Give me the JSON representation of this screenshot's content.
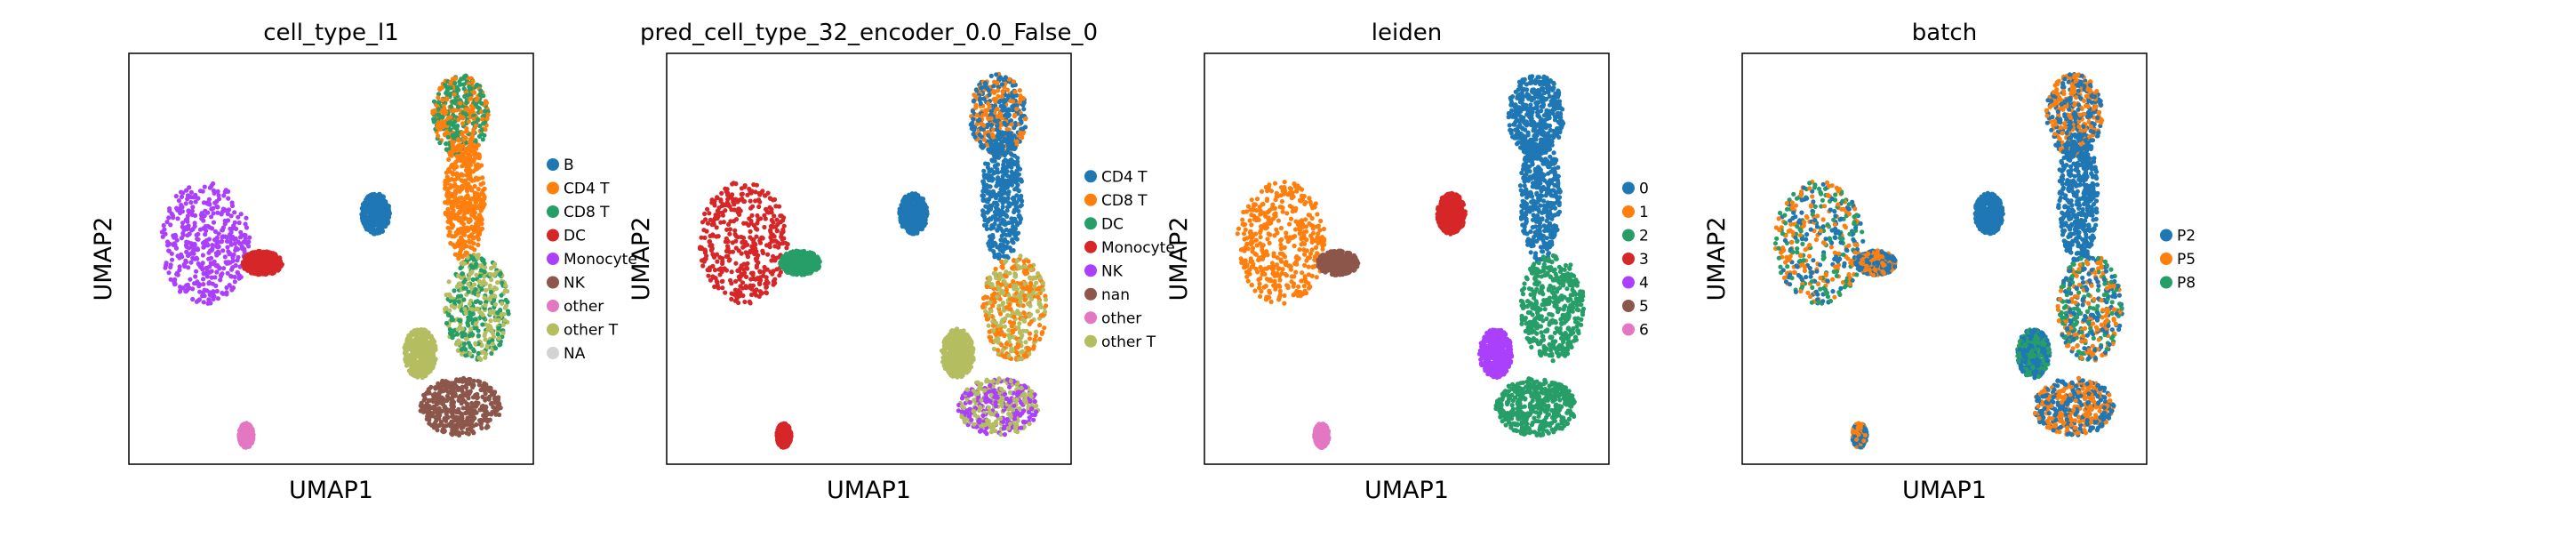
{
  "chart_data": [
    {
      "type": "scatter",
      "title": "cell_type_l1",
      "xlabel": "UMAP1",
      "ylabel": "UMAP2",
      "grid": false,
      "legend_position": "right",
      "series": [
        {
          "name": "B",
          "color": "#1f77b4"
        },
        {
          "name": "CD4 T",
          "color": "#ff7f0e"
        },
        {
          "name": "CD8 T",
          "color": "#279e68"
        },
        {
          "name": "DC",
          "color": "#d62728"
        },
        {
          "name": "Monocyte",
          "color": "#aa40fc"
        },
        {
          "name": "NK",
          "color": "#8c564b"
        },
        {
          "name": "other",
          "color": "#e377c2"
        },
        {
          "name": "other T",
          "color": "#b5bd61"
        },
        {
          "name": "NA",
          "color": "#d3d3d3"
        }
      ]
    },
    {
      "type": "scatter",
      "title": "pred_cell_type_32_encoder_0.0_False_0",
      "xlabel": "UMAP1",
      "ylabel": "UMAP2",
      "grid": false,
      "legend_position": "right",
      "series": [
        {
          "name": "CD4 T",
          "color": "#1f77b4"
        },
        {
          "name": "CD8 T",
          "color": "#ff7f0e"
        },
        {
          "name": "DC",
          "color": "#279e68"
        },
        {
          "name": "Monocyte",
          "color": "#d62728"
        },
        {
          "name": "NK",
          "color": "#aa40fc"
        },
        {
          "name": "nan",
          "color": "#8c564b"
        },
        {
          "name": "other",
          "color": "#e377c2"
        },
        {
          "name": "other T",
          "color": "#b5bd61"
        }
      ]
    },
    {
      "type": "scatter",
      "title": "leiden",
      "xlabel": "UMAP1",
      "ylabel": "UMAP2",
      "grid": false,
      "legend_position": "right",
      "series": [
        {
          "name": "0",
          "color": "#1f77b4"
        },
        {
          "name": "1",
          "color": "#ff7f0e"
        },
        {
          "name": "2",
          "color": "#279e68"
        },
        {
          "name": "3",
          "color": "#d62728"
        },
        {
          "name": "4",
          "color": "#aa40fc"
        },
        {
          "name": "5",
          "color": "#8c564b"
        },
        {
          "name": "6",
          "color": "#e377c2"
        }
      ]
    },
    {
      "type": "scatter",
      "title": "batch",
      "xlabel": "UMAP1",
      "ylabel": "UMAP2",
      "grid": false,
      "legend_position": "right",
      "series": [
        {
          "name": "P2",
          "color": "#1f77b4"
        },
        {
          "name": "P5",
          "color": "#ff7f0e"
        },
        {
          "name": "P8",
          "color": "#279e68"
        }
      ]
    }
  ]
}
